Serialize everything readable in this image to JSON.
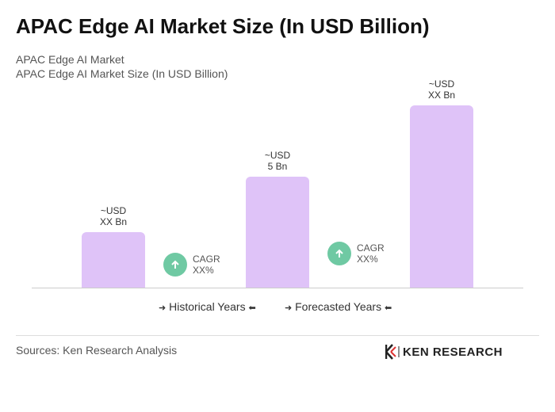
{
  "chart_data": {
    "type": "bar",
    "title": "APAC Edge AI Market Size (In USD Billion)",
    "subtitle": "APAC Edge AI Market",
    "y_label": "APAC Edge AI Market Size (In USD Billion)",
    "categories": [
      null,
      null,
      null
    ],
    "values": [
      2.5,
      5,
      8.2
    ],
    "value_labels": [
      "~USD\nXX Bn",
      "~USD\n5 Bn",
      "~USD\nXX Bn"
    ],
    "color": "#dfc3f8",
    "annotations": [
      "CAGR\nXX%",
      "CAGR\nXX%"
    ],
    "legend": [
      "Historical Years",
      "Forecasted Years"
    ]
  },
  "footer": {
    "source": "Sources: Ken Research Analysis",
    "logo": "KEN RESEARCH"
  }
}
